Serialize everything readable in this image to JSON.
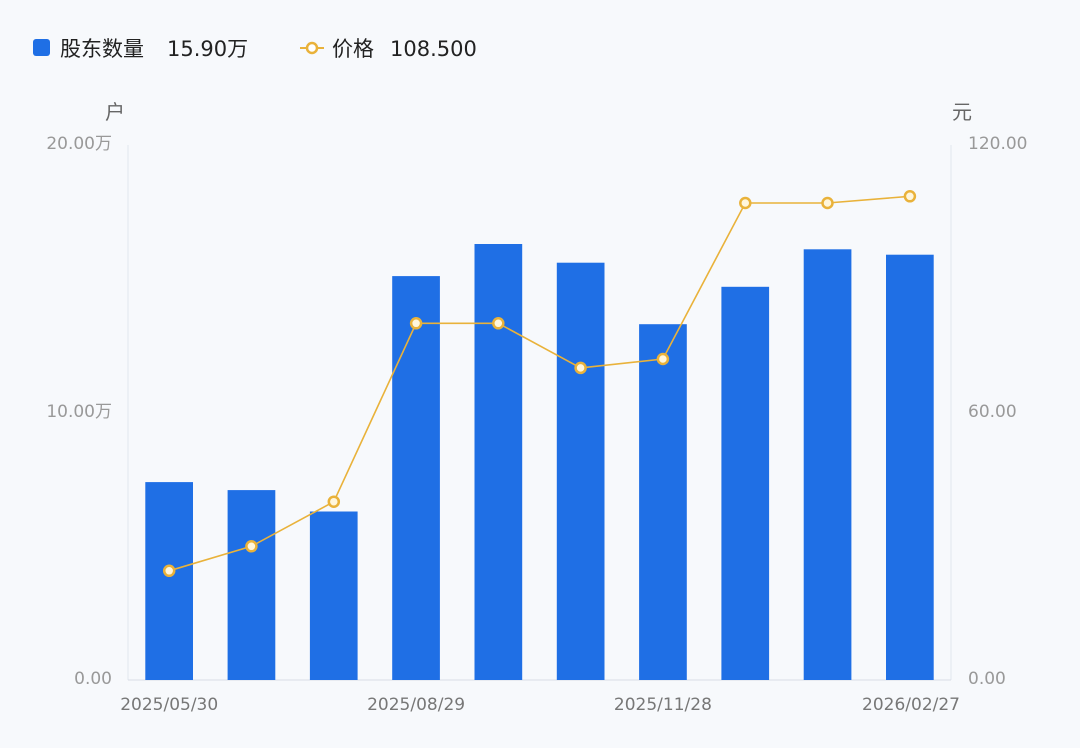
{
  "legend": {
    "bar_label": "股东数量",
    "bar_value": "15.90万",
    "line_label": "价格",
    "line_value": "108.500"
  },
  "axes": {
    "left_unit": "户",
    "right_unit": "元",
    "left_ticks": [
      "0.00",
      "10.00万",
      "20.00万"
    ],
    "right_ticks": [
      "0.00",
      "60.00",
      "120.00"
    ]
  },
  "chart_data": {
    "type": "bar",
    "categories": [
      "2025/05/30",
      "",
      "",
      "2025/08/29",
      "",
      "",
      "2025/11/28",
      "",
      "",
      "2026/02/27"
    ],
    "x_tick_labels": [
      "2025/05/30",
      "2025/08/29",
      "2025/11/28",
      "2026/02/27"
    ],
    "series": [
      {
        "name": "股东数量",
        "type": "bar",
        "axis": "left",
        "unit": "万户",
        "values": [
          7.4,
          7.1,
          6.3,
          15.1,
          16.3,
          15.6,
          13.3,
          14.7,
          16.1,
          15.9
        ]
      },
      {
        "name": "价格",
        "type": "line",
        "axis": "right",
        "unit": "元",
        "values": [
          24.5,
          30.0,
          40.0,
          80.0,
          80.0,
          70.0,
          72.0,
          107.0,
          107.0,
          108.5
        ]
      }
    ],
    "ylim_left": [
      0,
      20
    ],
    "ylim_right": [
      0,
      120
    ],
    "ylabel_left": "户",
    "ylabel_right": "元",
    "grid": false,
    "legend_position": "top-left",
    "colors": {
      "bar": "#1f6fe5",
      "line": "#e9b23a",
      "axis": "#d8dde6"
    }
  }
}
